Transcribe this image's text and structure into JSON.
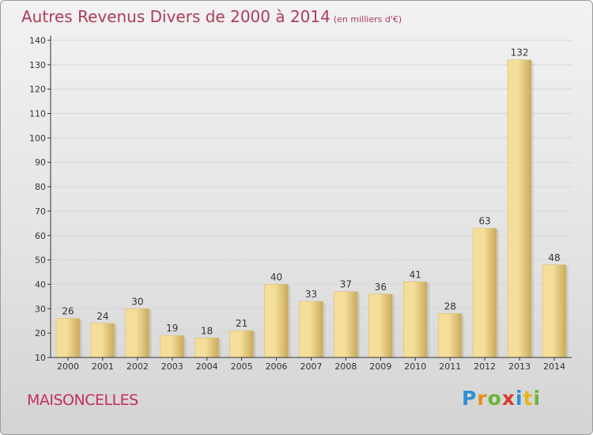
{
  "header": {
    "title": "Autres Revenus Divers de 2000 à 2014",
    "unit": "(en milliers d'€)"
  },
  "footer": {
    "town": "MAISONCELLES",
    "logo": "Proxiti"
  },
  "colors": {
    "bar_light": "#f5de9a",
    "bar_dark": "#c9a95c",
    "title": "#ad3c5a",
    "axis": "#333333",
    "grid": "#d6d6d6"
  },
  "chart_data": {
    "type": "bar",
    "title": "Autres Revenus Divers de 2000 à 2014",
    "categories": [
      "2000",
      "2001",
      "2002",
      "2003",
      "2004",
      "2005",
      "2006",
      "2007",
      "2008",
      "2009",
      "2010",
      "2011",
      "2012",
      "2013",
      "2014"
    ],
    "values": [
      26,
      24,
      30,
      19,
      18,
      21,
      40,
      33,
      37,
      36,
      41,
      28,
      63,
      132,
      48
    ],
    "xlabel": "",
    "ylabel": "",
    "ylim": [
      10,
      140
    ],
    "yticks": [
      10,
      20,
      30,
      40,
      50,
      60,
      70,
      80,
      90,
      100,
      110,
      120,
      130,
      140
    ],
    "grid": true,
    "data_labels": true,
    "legend": "none"
  }
}
